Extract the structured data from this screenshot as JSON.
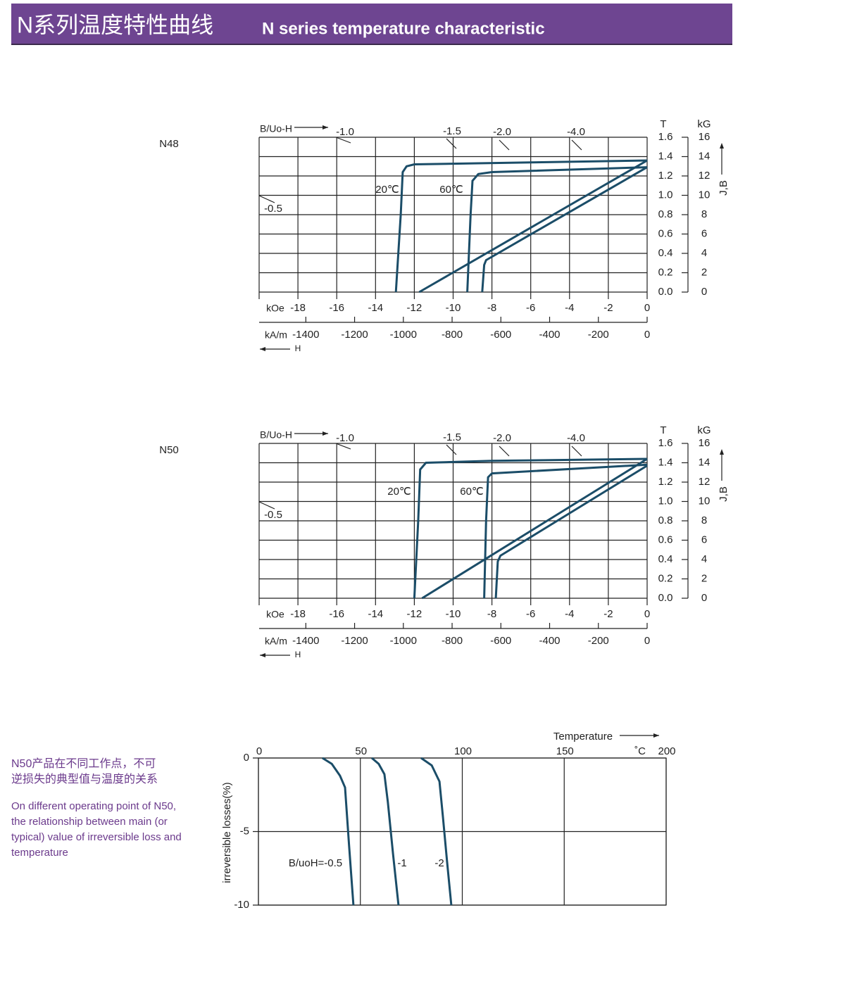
{
  "header": {
    "title_cn": "N系列温度特性曲线",
    "title_en": "N series temperature characteristic"
  },
  "side_note": {
    "cn": [
      "N50产品在不同工作点，不可",
      "逆损失的典型值与温度的关系"
    ],
    "en": [
      "On different operating point of N50,",
      "the relationship between main (or",
      "typical) value of irreversible loss and",
      "temperature"
    ]
  },
  "chart_data": [
    {
      "type": "demagnetization",
      "title": "N48",
      "xlabel": "kOe",
      "x2label": "kA/m",
      "x_arrow_label": "H",
      "ylabel": "T",
      "y2label": "kG",
      "y_arrow_label": "J,B",
      "loadline_label": "B/Uo-H",
      "load_lines": [
        "-1.0",
        "-1.5",
        "-2.0",
        "-4.0",
        "-0.5"
      ],
      "xlim": [
        -20,
        0
      ],
      "xticks": [
        -18,
        -16,
        -14,
        -12,
        -10,
        -8,
        -6,
        -4,
        -2,
        0
      ],
      "x2lim": [
        -1591.55,
        0
      ],
      "x2ticks": [
        -1400,
        -1200,
        -1000,
        -800,
        -600,
        -400,
        -200,
        0
      ],
      "ylim": [
        0,
        1.6
      ],
      "yticks": [
        {
          "value": 0,
          "label": "0.0"
        },
        0.2,
        0.4,
        0.6,
        0.8,
        {
          "value": 1,
          "label": "1.0"
        },
        1.2,
        1.4,
        1.6
      ],
      "y2lim": [
        0,
        16
      ],
      "y2ticks": [
        0,
        2,
        4,
        6,
        8,
        10,
        12,
        14,
        16
      ],
      "grid": true,
      "series": [
        {
          "name": "20℃",
          "color": "#1b4d68",
          "curves": [
            {
              "x": [
                0,
                -6,
                -12,
                -12.4,
                -12.6,
                -12.7,
                -12.95
              ],
              "values": [
                1.36,
                1.34,
                1.32,
                1.3,
                1.24,
                0.8,
                0
              ]
            },
            {
              "x": [
                0,
                -11.75
              ],
              "values": [
                1.36,
                0
              ]
            }
          ]
        },
        {
          "name": "60℃",
          "color": "#1b4d68",
          "curves": [
            {
              "x": [
                0,
                -8,
                -8.7,
                -9.0,
                -9.1,
                -9.27
              ],
              "values": [
                1.29,
                1.24,
                1.22,
                1.15,
                0.8,
                0
              ]
            },
            {
              "x": [
                0,
                -8.3,
                -8.4,
                -8.5
              ],
              "values": [
                1.29,
                0.33,
                0.28,
                0
              ]
            }
          ]
        }
      ]
    },
    {
      "type": "demagnetization",
      "title": "N50",
      "xlabel": "kOe",
      "x2label": "kA/m",
      "x_arrow_label": "H",
      "ylabel": "T",
      "y2label": "kG",
      "y_arrow_label": "J,B",
      "loadline_label": "B/Uo-H",
      "load_lines": [
        "-1.0",
        "-1.5",
        "-2.0",
        "-4.0",
        "-0.5"
      ],
      "xlim": [
        -20,
        0
      ],
      "xticks": [
        -18,
        -16,
        -14,
        -12,
        -10,
        -8,
        -6,
        -4,
        -2,
        0
      ],
      "x2lim": [
        -1591.55,
        0
      ],
      "x2ticks": [
        -1400,
        -1200,
        -1000,
        -800,
        -600,
        -400,
        -200,
        0
      ],
      "ylim": [
        0,
        1.6
      ],
      "yticks": [
        {
          "value": 0,
          "label": "0.0"
        },
        0.2,
        0.4,
        0.6,
        0.8,
        {
          "value": 1,
          "label": "1.0"
        },
        1.2,
        1.4,
        1.6
      ],
      "y2lim": [
        0,
        16
      ],
      "y2ticks": [
        0,
        2,
        4,
        6,
        8,
        10,
        12,
        14,
        16
      ],
      "grid": true,
      "series": [
        {
          "name": "20℃",
          "color": "#1b4d68",
          "curves": [
            {
              "x": [
                0,
                -8,
                -11.4,
                -11.7,
                -11.8,
                -12.0
              ],
              "values": [
                1.44,
                1.42,
                1.4,
                1.33,
                0.8,
                0
              ]
            },
            {
              "x": [
                0,
                -11.6
              ],
              "values": [
                1.44,
                0
              ]
            }
          ]
        },
        {
          "name": "60℃",
          "color": "#1b4d68",
          "curves": [
            {
              "x": [
                0,
                -8,
                -8.2,
                -8.3,
                -8.4
              ],
              "values": [
                1.38,
                1.29,
                1.25,
                0.8,
                0
              ]
            },
            {
              "x": [
                0,
                -7.56,
                -7.7,
                -7.8
              ],
              "values": [
                1.37,
                0.44,
                0.38,
                0
              ]
            }
          ]
        }
      ]
    },
    {
      "type": "line",
      "ylabel": "irreversible losses(%)",
      "xlabel": "Temperature",
      "x_unit": "˚C",
      "xlim": [
        0,
        200
      ],
      "xticks": [
        0,
        50,
        100,
        150,
        200
      ],
      "ylim": [
        -10,
        0
      ],
      "yticks": [
        0,
        -5,
        -10
      ],
      "grid": true,
      "series": [
        {
          "name": "B/uoH=-0.5",
          "color": "#1b4d68",
          "x": [
            31.4,
            36,
            40,
            42.5,
            44.5,
            46.6
          ],
          "values": [
            0,
            -0.4,
            -1.2,
            -2,
            -6,
            -10
          ]
        },
        {
          "name": "-1",
          "color": "#1b4d68",
          "x": [
            55.6,
            59,
            61.8,
            63.5,
            66,
            68.7
          ],
          "values": [
            0,
            -0.4,
            -1.1,
            -3,
            -6.5,
            -10
          ]
        },
        {
          "name": "-2",
          "color": "#1b4d68",
          "x": [
            79.8,
            85,
            88.8,
            90.5,
            92.5,
            94.6
          ],
          "values": [
            0,
            -0.5,
            -1.6,
            -4,
            -7,
            -10
          ]
        }
      ]
    }
  ]
}
